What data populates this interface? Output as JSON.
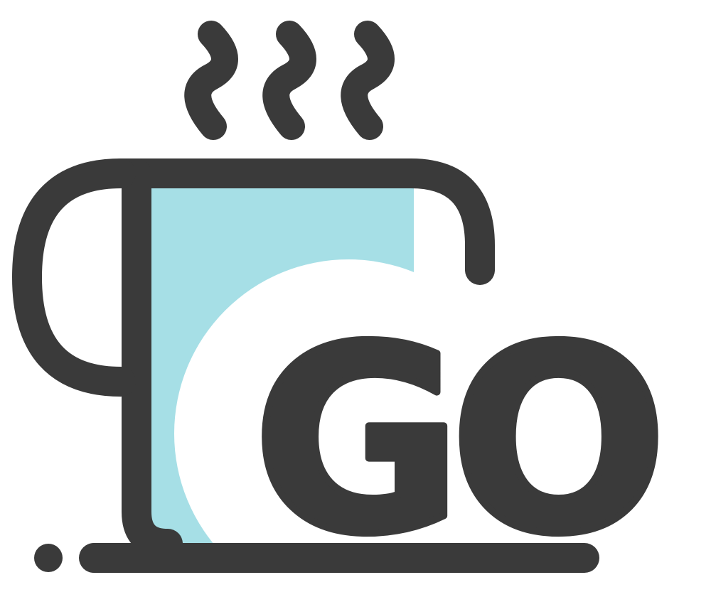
{
  "logo": {
    "wordmark": "GO",
    "icon_name": "coffee-mug-icon",
    "colors": {
      "dark": "#3a3a3a",
      "accent": "#a6dfe6",
      "background": "#ffffff"
    }
  }
}
